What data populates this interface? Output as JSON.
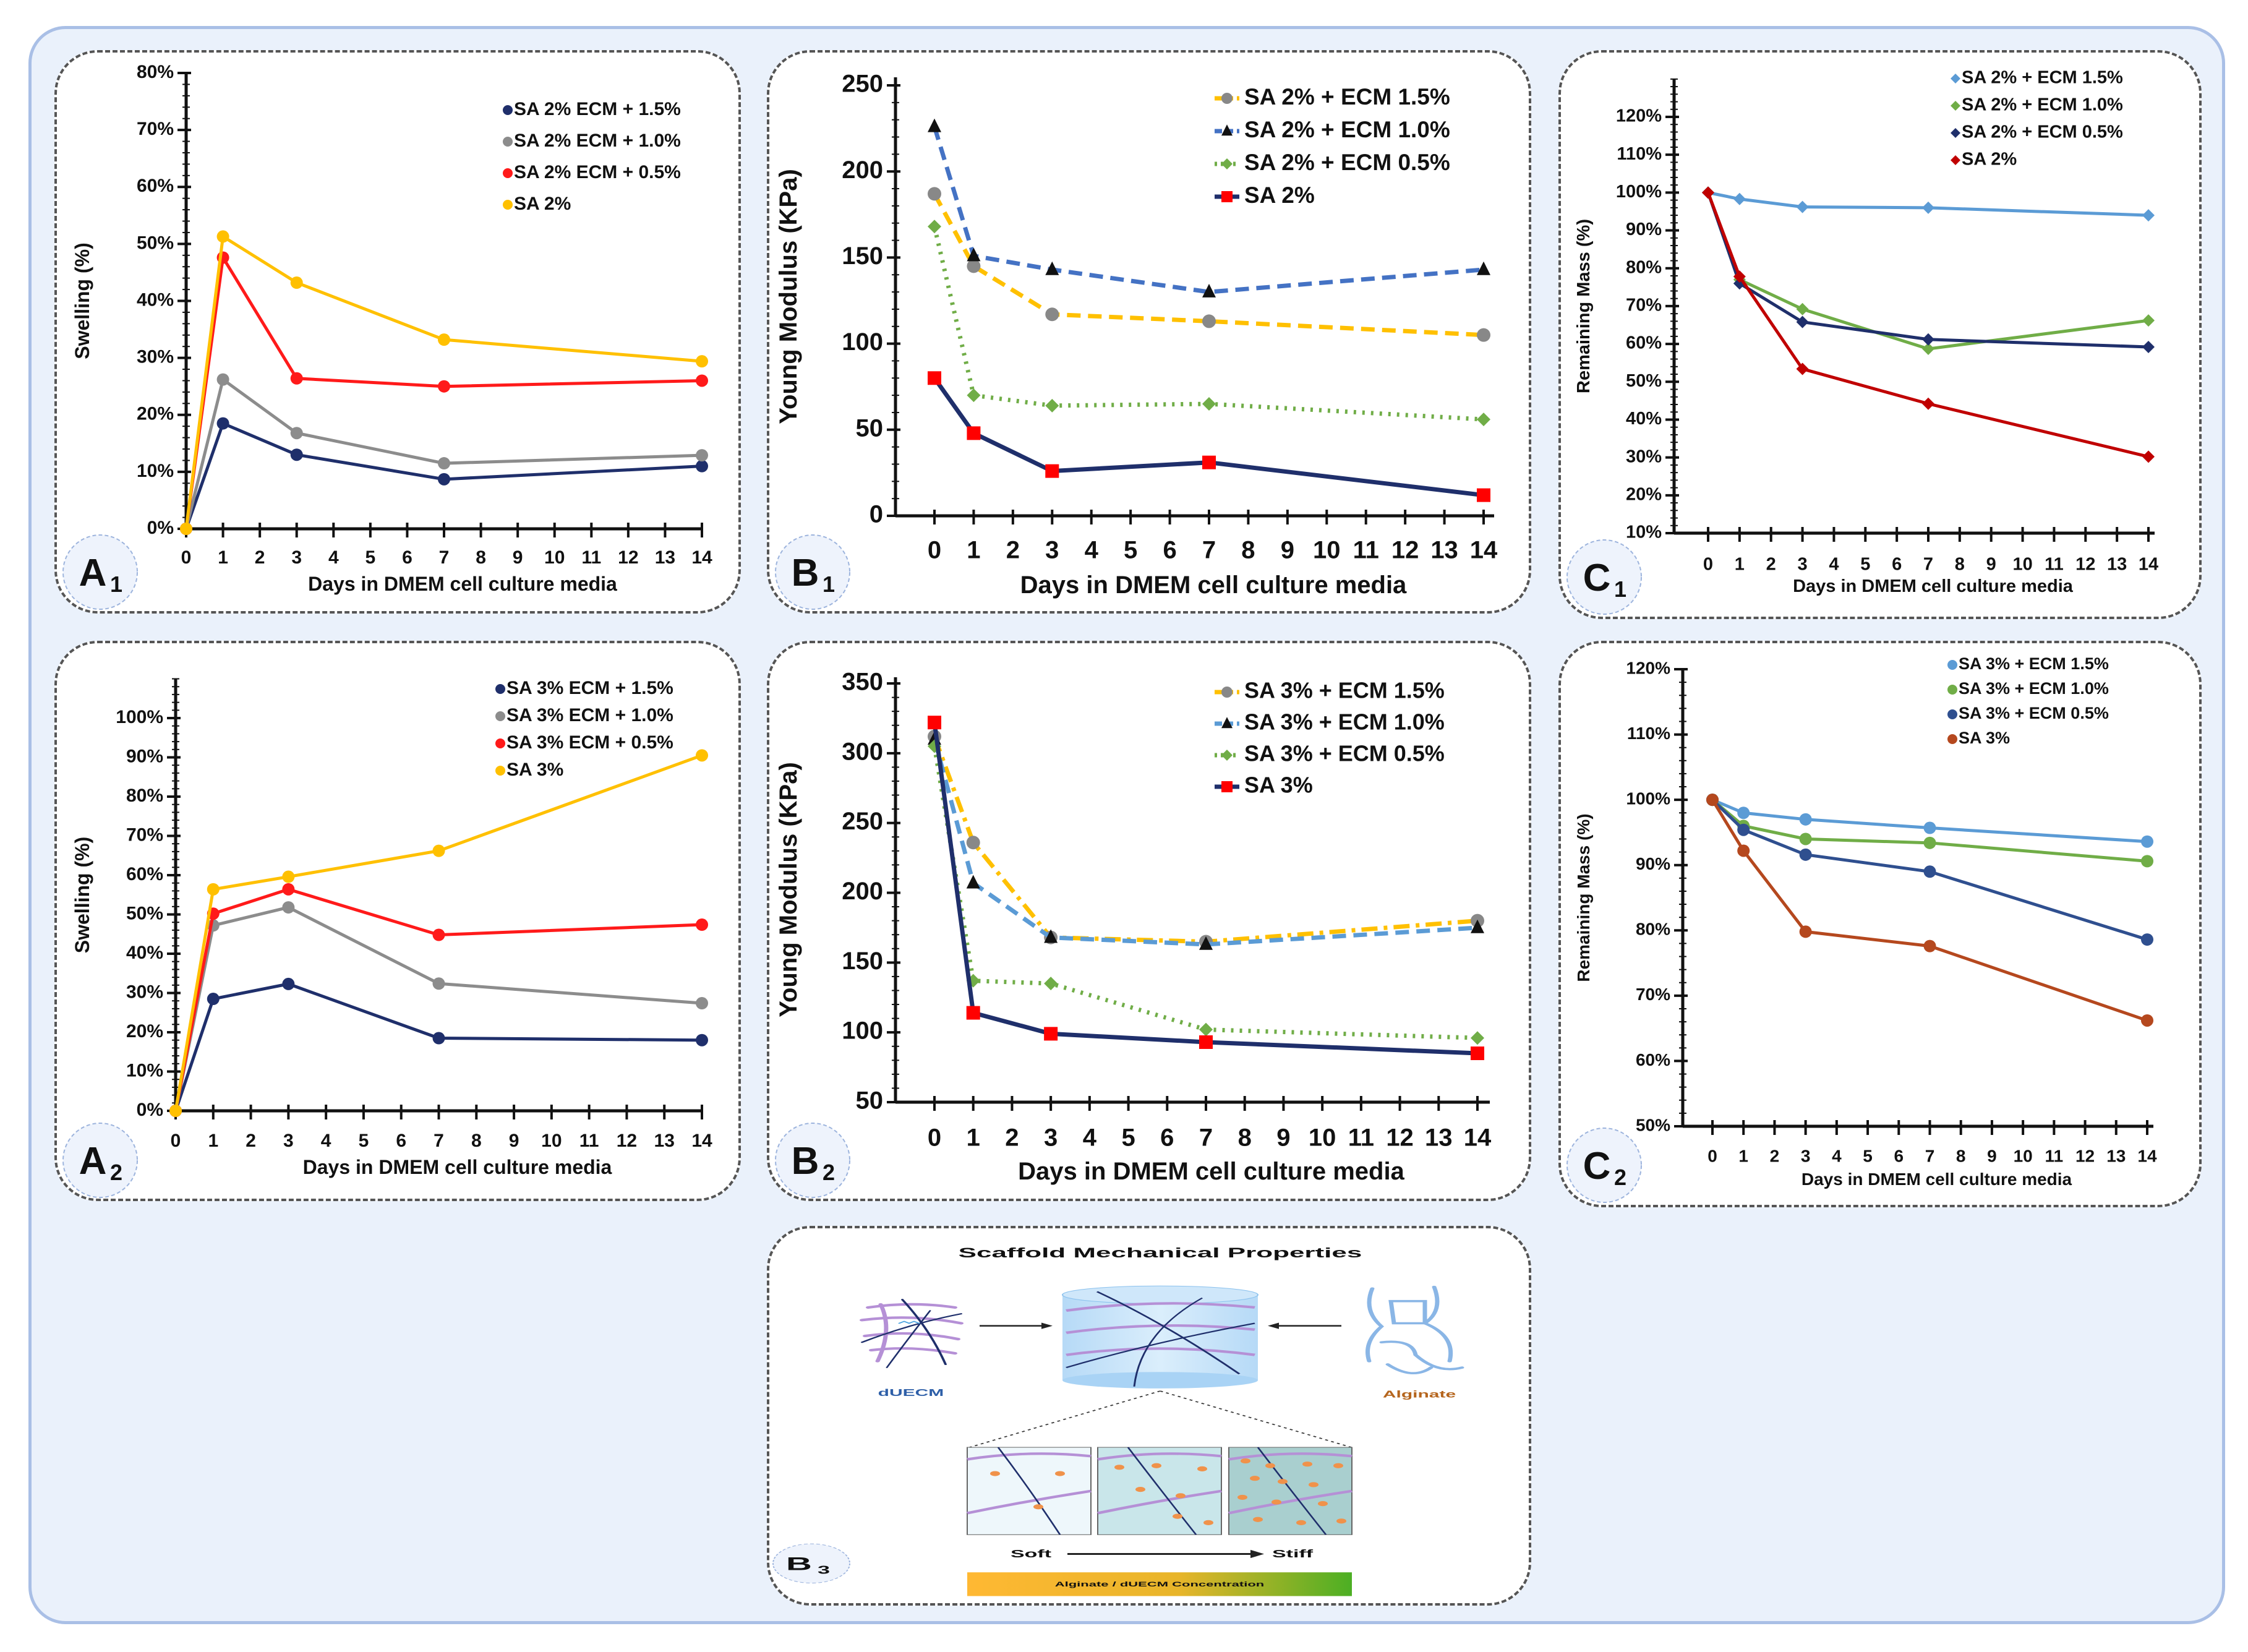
{
  "chart_data": [
    {
      "id": "A1",
      "type": "line",
      "panel_label": {
        "letter": "A",
        "sub": "1"
      },
      "xlabel": "Days in DMEM cell culture media",
      "ylabel": "Swelling (%)",
      "x": [
        0,
        1,
        3,
        7,
        14
      ],
      "xticks": [
        "0",
        "1",
        "2",
        "3",
        "4",
        "5",
        "6",
        "7",
        "8",
        "9",
        "10",
        "11",
        "12",
        "13",
        "14"
      ],
      "ylim": [
        0,
        80
      ],
      "yticks": [
        "0%",
        "10%",
        "20%",
        "30%",
        "40%",
        "50%",
        "60%",
        "70%",
        "80%"
      ],
      "grid": false,
      "legend_position": "top-right",
      "series": [
        {
          "name": "SA 2% ECM + 1.5%",
          "values": [
            0,
            18.5,
            13,
            8.7,
            11
          ],
          "color": "#1f2f6b",
          "marker": "circle",
          "line_style": "solid"
        },
        {
          "name": "SA 2% ECM + 1.0%",
          "values": [
            0,
            26.2,
            16.8,
            11.5,
            12.9
          ],
          "color": "#8c8c8c",
          "marker": "circle",
          "line_style": "solid"
        },
        {
          "name": "SA 2% ECM + 0.5%",
          "values": [
            0,
            47.6,
            26.4,
            25,
            26
          ],
          "color": "#ff1a1a",
          "marker": "circle",
          "line_style": "solid"
        },
        {
          "name": "SA 2%",
          "values": [
            0,
            51.3,
            43.2,
            33.2,
            29.4
          ],
          "color": "#ffc000",
          "marker": "circle",
          "line_style": "solid"
        }
      ]
    },
    {
      "id": "B1",
      "type": "line",
      "panel_label": {
        "letter": "B",
        "sub": "1"
      },
      "xlabel": "Days in DMEM cell culture media",
      "ylabel": "Young Modulus (KPa)",
      "x": [
        0,
        1,
        3,
        7,
        14
      ],
      "xticks": [
        "0",
        "1",
        "2",
        "3",
        "4",
        "5",
        "6",
        "7",
        "8",
        "9",
        "10",
        "11",
        "12",
        "13",
        "14"
      ],
      "ylim": [
        0,
        250
      ],
      "yticks": [
        "0",
        "50",
        "100",
        "150",
        "200",
        "250"
      ],
      "grid": false,
      "legend_position": "top-right",
      "series": [
        {
          "name": "SA 2% + ECM 1.5%",
          "values": [
            187,
            145,
            117,
            113,
            105
          ],
          "color": "#ffc000",
          "marker": "circle-gray",
          "line_style": "dashed"
        },
        {
          "name": "SA 2% + ECM 1.0%",
          "values": [
            226,
            151,
            143,
            130,
            143
          ],
          "color": "#4472c4",
          "marker": "triangle",
          "line_style": "dashed"
        },
        {
          "name": "SA 2% + ECM 0.5%",
          "values": [
            168,
            70,
            64,
            65,
            56
          ],
          "color": "#70ad47",
          "marker": "diamond",
          "line_style": "dotted"
        },
        {
          "name": "SA 2%",
          "values": [
            80,
            48,
            26,
            31,
            12
          ],
          "color": "#1f2f6b",
          "marker": "square-red",
          "line_style": "solid"
        }
      ]
    },
    {
      "id": "C1",
      "type": "line",
      "panel_label": {
        "letter": "C",
        "sub": "1"
      },
      "xlabel": "Days in DMEM cell culture media",
      "ylabel": "Remaining Mass (%)",
      "x": [
        0,
        1,
        3,
        7,
        14
      ],
      "xticks": [
        "0",
        "1",
        "2",
        "3",
        "4",
        "5",
        "6",
        "7",
        "8",
        "9",
        "10",
        "11",
        "12",
        "13",
        "14"
      ],
      "ylim": [
        10,
        120
      ],
      "yticks": [
        "10%",
        "20%",
        "30%",
        "40%",
        "50%",
        "60%",
        "70%",
        "80%",
        "90%",
        "100%",
        "110%",
        "120%"
      ],
      "grid": false,
      "legend_position": "top-right",
      "series": [
        {
          "name": "SA 2% + ECM 1.5%",
          "values": [
            100,
            98.3,
            96.2,
            96,
            94
          ],
          "color": "#5b9bd5",
          "marker": "diamond",
          "line_style": "solid"
        },
        {
          "name": "SA 2% + ECM 1.0%",
          "values": [
            100,
            77,
            69.2,
            58.7,
            66.2
          ],
          "color": "#70ad47",
          "marker": "diamond",
          "line_style": "solid"
        },
        {
          "name": "SA 2% + ECM 0.5%",
          "values": [
            100,
            76,
            65.8,
            61.2,
            59.2
          ],
          "color": "#1f2f6b",
          "marker": "diamond",
          "line_style": "solid"
        },
        {
          "name": "SA 2%",
          "values": [
            100,
            77.8,
            53.4,
            44.2,
            30.2
          ],
          "color": "#c00000",
          "marker": "diamond",
          "line_style": "solid"
        }
      ]
    },
    {
      "id": "A2",
      "type": "line",
      "panel_label": {
        "letter": "A",
        "sub": "2"
      },
      "xlabel": "Days in DMEM cell culture media",
      "ylabel": "Swelling (%)",
      "x": [
        0,
        1,
        3,
        7,
        14
      ],
      "xticks": [
        "0",
        "1",
        "2",
        "3",
        "4",
        "5",
        "6",
        "7",
        "8",
        "9",
        "10",
        "11",
        "12",
        "13",
        "14"
      ],
      "ylim": [
        0,
        110
      ],
      "yticks": [
        "0%",
        "10%",
        "20%",
        "30%",
        "40%",
        "50%",
        "60%",
        "70%",
        "80%",
        "90%",
        "100%"
      ],
      "grid": false,
      "legend_position": "top-right",
      "series": [
        {
          "name": "SA 3% ECM + 1.5%",
          "values": [
            0,
            28.5,
            32.3,
            18.5,
            18
          ],
          "color": "#1f2f6b",
          "marker": "circle",
          "line_style": "solid"
        },
        {
          "name": "SA 3% ECM + 1.0%",
          "values": [
            0,
            47.2,
            51.8,
            32.4,
            27.4
          ],
          "color": "#8c8c8c",
          "marker": "circle",
          "line_style": "solid"
        },
        {
          "name": "SA 3% ECM + 0.5%",
          "values": [
            0,
            50.2,
            56.4,
            44.8,
            47.4
          ],
          "color": "#ff1a1a",
          "marker": "circle",
          "line_style": "solid"
        },
        {
          "name": "SA 3%",
          "values": [
            0,
            56.4,
            59.6,
            66.2,
            90.5
          ],
          "color": "#ffc000",
          "marker": "circle",
          "line_style": "solid"
        }
      ]
    },
    {
      "id": "B2",
      "type": "line",
      "panel_label": {
        "letter": "B",
        "sub": "2"
      },
      "xlabel": "Days in DMEM cell culture media",
      "ylabel": "Young Modulus (KPa)",
      "x": [
        0,
        1,
        3,
        7,
        14
      ],
      "xticks": [
        "0",
        "1",
        "2",
        "3",
        "4",
        "5",
        "6",
        "7",
        "8",
        "9",
        "10",
        "11",
        "12",
        "13",
        "14"
      ],
      "ylim": [
        50,
        350
      ],
      "yticks": [
        "50",
        "100",
        "150",
        "200",
        "250",
        "300",
        "350"
      ],
      "grid": false,
      "legend_position": "top-right",
      "series": [
        {
          "name": "SA 3% + ECM 1.5%",
          "values": [
            312,
            236,
            168,
            165,
            180
          ],
          "color": "#ffc000",
          "marker": "circle-gray",
          "line_style": "dashdot"
        },
        {
          "name": "SA 3% + ECM 1.0%",
          "values": [
            310,
            207,
            168,
            163,
            175
          ],
          "color": "#5b9bd5",
          "marker": "triangle",
          "line_style": "dashed"
        },
        {
          "name": "SA 3% + ECM 0.5%",
          "values": [
            305,
            137,
            135,
            102,
            96
          ],
          "color": "#70ad47",
          "marker": "diamond",
          "line_style": "dotted"
        },
        {
          "name": "SA 3%",
          "values": [
            322,
            114,
            99,
            93,
            85
          ],
          "color": "#1f2f6b",
          "marker": "square-red",
          "line_style": "solid"
        }
      ]
    },
    {
      "id": "C2",
      "type": "line",
      "panel_label": {
        "letter": "C",
        "sub": "2"
      },
      "xlabel": "Days in DMEM cell culture media",
      "ylabel": "Remaining Mass (%)",
      "x": [
        0,
        1,
        3,
        7,
        14
      ],
      "xticks": [
        "0",
        "1",
        "2",
        "3",
        "4",
        "5",
        "6",
        "7",
        "8",
        "9",
        "10",
        "11",
        "12",
        "13",
        "14"
      ],
      "ylim": [
        50,
        120
      ],
      "yticks": [
        "50%",
        "60%",
        "70%",
        "80%",
        "90%",
        "100%",
        "110%",
        "120%"
      ],
      "grid": false,
      "legend_position": "top-right",
      "series": [
        {
          "name": "SA 3% + ECM 1.5%",
          "values": [
            100,
            98,
            97,
            95.7,
            93.6
          ],
          "color": "#5b9bd5",
          "marker": "circle",
          "line_style": "solid"
        },
        {
          "name": "SA 3% + ECM 1.0%",
          "values": [
            100,
            96,
            94,
            93.4,
            90.6
          ],
          "color": "#70ad47",
          "marker": "circle",
          "line_style": "solid"
        },
        {
          "name": "SA 3% + ECM 0.5%",
          "values": [
            100,
            95.4,
            91.6,
            89,
            78.6
          ],
          "color": "#2f4f8f",
          "marker": "circle",
          "line_style": "solid"
        },
        {
          "name": "SA 3%",
          "values": [
            100,
            92.2,
            79.8,
            77.6,
            66.2
          ],
          "color": "#b5481e",
          "marker": "circle",
          "line_style": "solid"
        }
      ]
    }
  ],
  "schematic": {
    "panel_label": {
      "letter": "B",
      "sub": "3"
    },
    "title": "Scaffold Mechanical Properties",
    "left_label": "dUECM",
    "right_label": "Alginate",
    "soft_label": "Soft",
    "stiff_label": "Stiff",
    "bar_label": "Alginate / dUECM Concentration",
    "colors": {
      "dUECM_label": "#2e5fa8",
      "alginate_label": "#b5651d",
      "bar_start": "#ffb833",
      "bar_end": "#4caf24"
    }
  }
}
